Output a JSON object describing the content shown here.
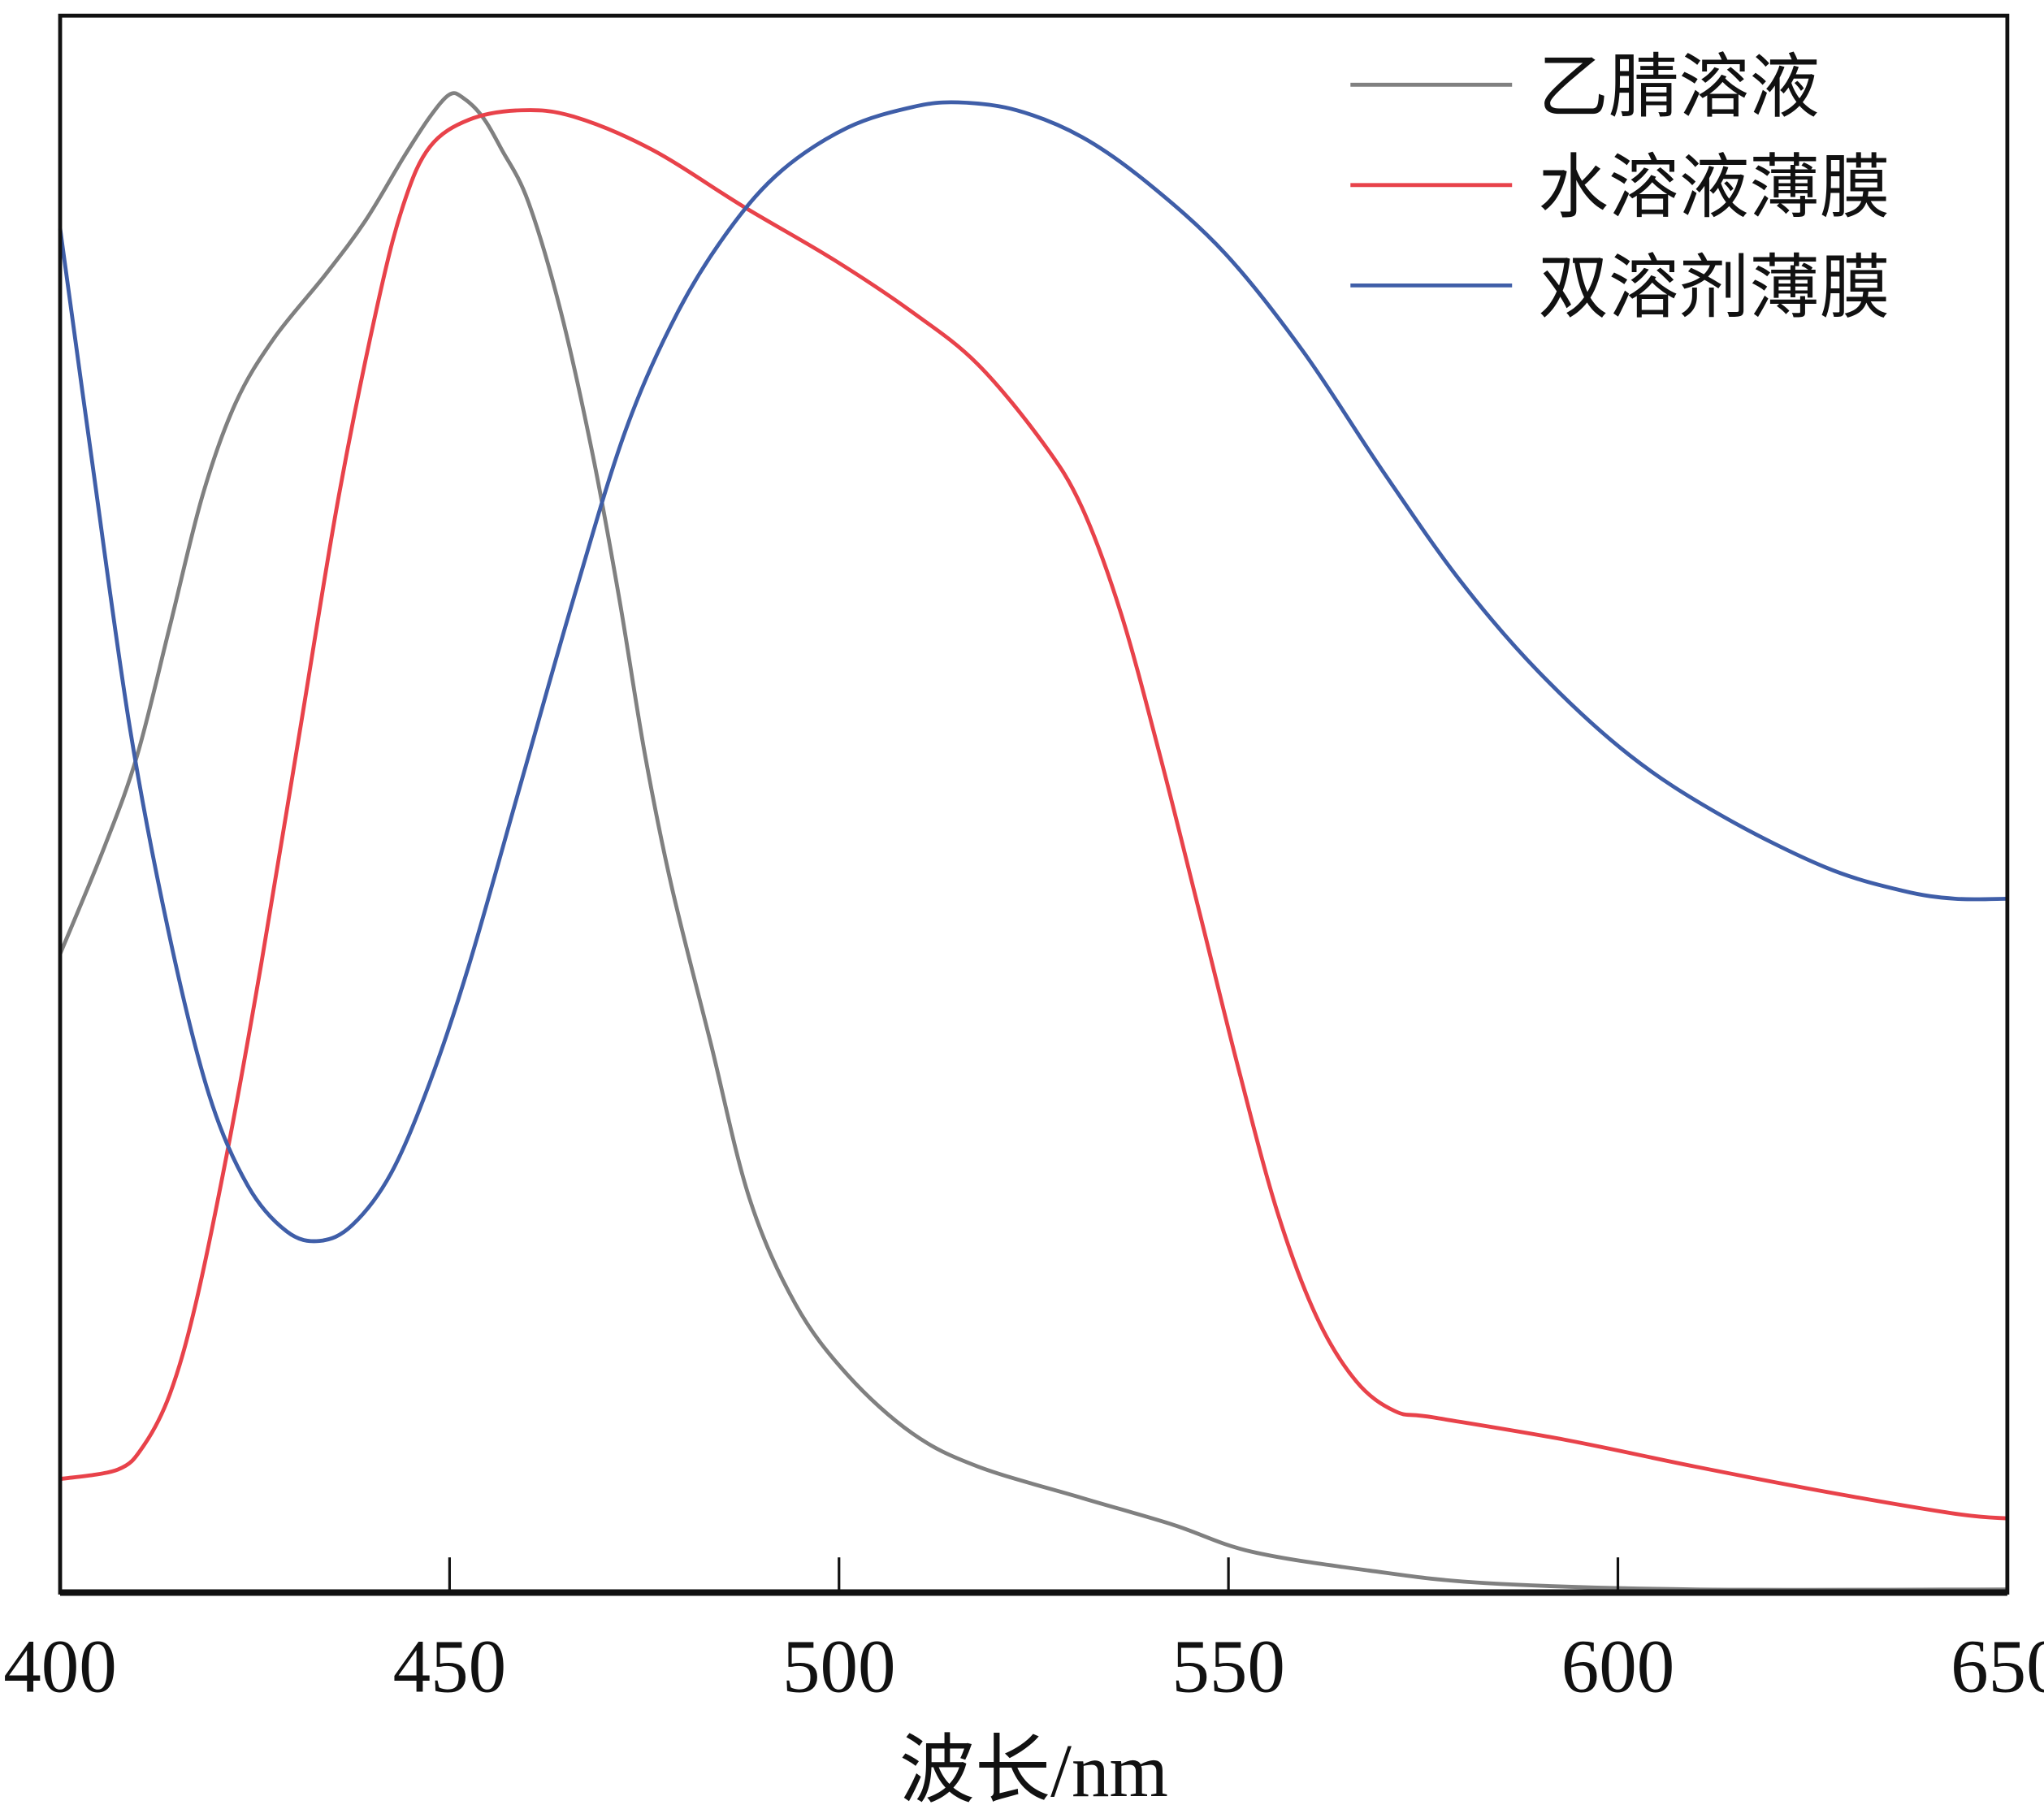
{
  "chart_data": {
    "type": "line",
    "title": "",
    "xlabel": "波长/nm",
    "ylabel": "",
    "xlim": [
      400,
      650
    ],
    "ylim": [
      0,
      1
    ],
    "x_ticks": [
      400,
      450,
      500,
      550,
      600,
      650
    ],
    "x_tick_labels": [
      "400",
      "450",
      "500",
      "550",
      "600",
      "650"
    ],
    "y_ticks": [],
    "grid": false,
    "legend_position": "top-right",
    "series": [
      {
        "name": "乙腈溶液",
        "color": "#808080",
        "points": [
          [
            400,
            0.405
          ],
          [
            405.7,
            0.473
          ],
          [
            409.9,
            0.531
          ],
          [
            414.1,
            0.613
          ],
          [
            418.3,
            0.696
          ],
          [
            422.5,
            0.754
          ],
          [
            427.4,
            0.795
          ],
          [
            434.1,
            0.836
          ],
          [
            439.2,
            0.87
          ],
          [
            444.2,
            0.911
          ],
          [
            447.5,
            0.936
          ],
          [
            450.0,
            0.95
          ],
          [
            451.7,
            0.948
          ],
          [
            454.2,
            0.936
          ],
          [
            456.7,
            0.915
          ],
          [
            460.1,
            0.882
          ],
          [
            464.3,
            0.812
          ],
          [
            468.4,
            0.721
          ],
          [
            471.8,
            0.63
          ],
          [
            475.1,
            0.531
          ],
          [
            478.5,
            0.448
          ],
          [
            483.5,
            0.349
          ],
          [
            488.5,
            0.25
          ],
          [
            494.4,
            0.183
          ],
          [
            501.1,
            0.138
          ],
          [
            509.4,
            0.101
          ],
          [
            517.8,
            0.08
          ],
          [
            531.2,
            0.06
          ],
          [
            542.9,
            0.043
          ],
          [
            552.9,
            0.026
          ],
          [
            568.0,
            0.014
          ],
          [
            583.1,
            0.006
          ],
          [
            609.8,
            0.002
          ],
          [
            650,
            0.002
          ]
        ]
      },
      {
        "name": "水溶液薄膜",
        "color": "#e8424a",
        "points": [
          [
            400,
            0.072
          ],
          [
            407.4,
            0.078
          ],
          [
            410.7,
            0.093
          ],
          [
            414.1,
            0.126
          ],
          [
            417.4,
            0.183
          ],
          [
            421.6,
            0.283
          ],
          [
            425.8,
            0.398
          ],
          [
            430.8,
            0.547
          ],
          [
            435.8,
            0.696
          ],
          [
            440.9,
            0.82
          ],
          [
            444.2,
            0.882
          ],
          [
            447.5,
            0.917
          ],
          [
            452.5,
            0.934
          ],
          [
            459.2,
            0.94
          ],
          [
            465.9,
            0.936
          ],
          [
            476.0,
            0.915
          ],
          [
            487.7,
            0.879
          ],
          [
            499.4,
            0.845
          ],
          [
            509.4,
            0.812
          ],
          [
            517.8,
            0.779
          ],
          [
            526.2,
            0.729
          ],
          [
            531.2,
            0.688
          ],
          [
            536.2,
            0.621
          ],
          [
            541.2,
            0.531
          ],
          [
            546.3,
            0.431
          ],
          [
            551.3,
            0.332
          ],
          [
            556.3,
            0.241
          ],
          [
            561.3,
            0.175
          ],
          [
            566.4,
            0.134
          ],
          [
            571.4,
            0.115
          ],
          [
            576.4,
            0.111
          ],
          [
            593.1,
            0.097
          ],
          [
            609.8,
            0.08
          ],
          [
            626.6,
            0.064
          ],
          [
            643.3,
            0.05
          ],
          [
            650,
            0.047
          ]
        ]
      },
      {
        "name": "双溶剂薄膜",
        "color": "#3f5ea8",
        "points": [
          [
            400,
            0.865
          ],
          [
            404.0,
            0.721
          ],
          [
            409.0,
            0.547
          ],
          [
            414.1,
            0.415
          ],
          [
            419.1,
            0.316
          ],
          [
            424.1,
            0.258
          ],
          [
            429.1,
            0.229
          ],
          [
            433.3,
            0.223
          ],
          [
            437.5,
            0.233
          ],
          [
            442.5,
            0.266
          ],
          [
            447.5,
            0.324
          ],
          [
            452.5,
            0.398
          ],
          [
            459.2,
            0.514
          ],
          [
            465.9,
            0.63
          ],
          [
            472.6,
            0.737
          ],
          [
            479.3,
            0.812
          ],
          [
            486.0,
            0.865
          ],
          [
            492.7,
            0.902
          ],
          [
            501.1,
            0.929
          ],
          [
            509.4,
            0.942
          ],
          [
            515.3,
            0.945
          ],
          [
            522.8,
            0.94
          ],
          [
            531.2,
            0.923
          ],
          [
            539.6,
            0.894
          ],
          [
            549.6,
            0.849
          ],
          [
            559.6,
            0.787
          ],
          [
            569.7,
            0.712
          ],
          [
            579.7,
            0.642
          ],
          [
            589.8,
            0.584
          ],
          [
            601.5,
            0.531
          ],
          [
            613.2,
            0.493
          ],
          [
            626.6,
            0.46
          ],
          [
            636.6,
            0.445
          ],
          [
            643.3,
            0.44
          ],
          [
            650,
            0.44
          ]
        ]
      }
    ]
  }
}
